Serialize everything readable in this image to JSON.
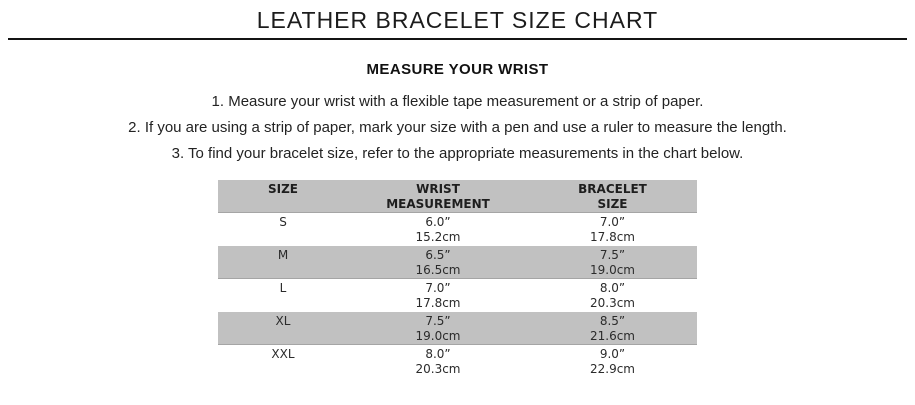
{
  "page": {
    "title": "LEATHER BRACELET SIZE CHART"
  },
  "instructions": {
    "heading": "MEASURE YOUR WRIST",
    "steps": [
      "1. Measure your wrist with a flexible tape measurement or a strip of paper.",
      "2. If you are using a strip of paper, mark your size with a pen and use a ruler to measure the length.",
      "3. To find your bracelet size, refer to the appropriate measurements in the chart below."
    ]
  },
  "size_chart": {
    "header": {
      "col1_line1": "SIZE",
      "col2_line1": "WRIST",
      "col2_line2": "MEASUREMENT",
      "col3_line1": "BRACELET",
      "col3_line2": "SIZE"
    },
    "rows": [
      {
        "size": "S",
        "wrist_in": "6.0”",
        "wrist_cm": "15.2cm",
        "bracelet_in": "7.0”",
        "bracelet_cm": "17.8cm"
      },
      {
        "size": "M",
        "wrist_in": "6.5”",
        "wrist_cm": "16.5cm",
        "bracelet_in": "7.5”",
        "bracelet_cm": "19.0cm"
      },
      {
        "size": "L",
        "wrist_in": "7.0”",
        "wrist_cm": "17.8cm",
        "bracelet_in": "8.0”",
        "bracelet_cm": "20.3cm"
      },
      {
        "size": "XL",
        "wrist_in": "7.5”",
        "wrist_cm": "19.0cm",
        "bracelet_in": "8.5”",
        "bracelet_cm": "21.6cm"
      },
      {
        "size": "XXL",
        "wrist_in": "8.0”",
        "wrist_cm": "20.3cm",
        "bracelet_in": "9.0”",
        "bracelet_cm": "22.9cm"
      }
    ],
    "colors": {
      "stripe_bg": "#c1c1c1",
      "stripe_edge": "#a5a5a5",
      "text": "#2b2b2b"
    }
  }
}
